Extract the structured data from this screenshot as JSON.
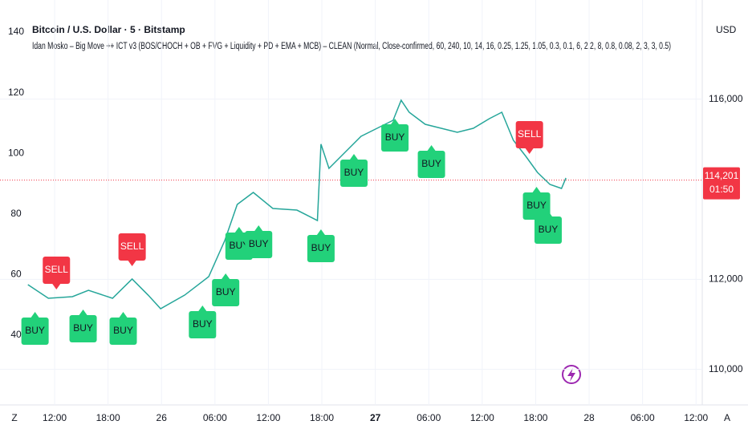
{
  "chart_data": {
    "type": "line",
    "title": "Bitcoin / U.S. Dollar · 5 · Bitstamp",
    "subtitle": "Idan Mosko – Big Move ++ ICT v3 (BOS/CHOCH + OB + FVG + Liquidity + PD + EMA + MCB) – CLEAN (Normal, Close-confirmed, 60, 240, 10, 14, 16, 0.25, 1.25, 1.05, 0.3, 0.1, 6, 2.2, 8, 0.8, 0.08, 2, 3, 3, 0.5)",
    "y_axis_label": "USD",
    "x": [
      9.0,
      11.3,
      14.0,
      15.8,
      18.5,
      20.7,
      22.5,
      23.9,
      26.6,
      29.3,
      31.1,
      32.5,
      34.3,
      36.5,
      39.2,
      41.5,
      41.9,
      42.8,
      44.6,
      46.4,
      48.2,
      50.0,
      50.9,
      51.8,
      53.6,
      55.4,
      57.2,
      59.0,
      60.8,
      62.2,
      63.5,
      64.9,
      66.2,
      67.6,
      68.9,
      69.4
    ],
    "series": [
      {
        "name": "BTCUSD",
        "color": "#26a69a",
        "values": [
          111881,
          111578,
          111614,
          111756,
          111578,
          112006,
          111649,
          111347,
          111649,
          112059,
          112860,
          113661,
          113928,
          113572,
          113536,
          113305,
          115000,
          114462,
          114818,
          115174,
          115352,
          115530,
          115975,
          115708,
          115441,
          115352,
          115263,
          115352,
          115566,
          115708,
          115085,
          114729,
          114373,
          114106,
          114017,
          114249
        ]
      }
    ],
    "xlim": [
      5.87,
      84.7
    ],
    "xticks": [
      {
        "value": 12,
        "label": "12:00"
      },
      {
        "value": 18,
        "label": "18:00"
      },
      {
        "value": 24,
        "label": "26"
      },
      {
        "value": 30,
        "label": "06:00"
      },
      {
        "value": 36,
        "label": "12:00"
      },
      {
        "value": 42,
        "label": "18:00"
      },
      {
        "value": 48,
        "label": "27"
      },
      {
        "value": 54,
        "label": "06:00"
      },
      {
        "value": 60,
        "label": "12:00"
      },
      {
        "value": 66,
        "label": "18:00"
      },
      {
        "value": 72,
        "label": "28"
      },
      {
        "value": 78,
        "label": "06:00"
      },
      {
        "value": 84,
        "label": "12:00"
      }
    ],
    "bold_xtick": 6,
    "ylim": [
      109300,
      118200
    ],
    "yticks": [
      {
        "value": 110000,
        "label": "110,000"
      },
      {
        "value": 112000,
        "label": "112,000"
      },
      {
        "value": 116000,
        "label": "116,000"
      }
    ],
    "grid": true,
    "left_axis": {
      "ylim": [
        18.3,
        150.6
      ],
      "yticks": [
        40,
        60,
        80,
        100,
        120,
        140
      ]
    },
    "current_price": {
      "value": 114201,
      "label": "114,201",
      "countdown": "01:50",
      "color": "#f23645"
    },
    "signals": [
      {
        "label": "SELL",
        "x": 12.2,
        "y": 112201
      },
      {
        "label": "SELL",
        "x": 20.7,
        "y": 112718
      },
      {
        "label": "SELL",
        "x": 65.3,
        "y": 115210
      },
      {
        "label": "BUY",
        "x": 9.8,
        "y": 110849
      },
      {
        "label": "BUY",
        "x": 15.2,
        "y": 110902
      },
      {
        "label": "BUY",
        "x": 19.7,
        "y": 110849
      },
      {
        "label": "BUY",
        "x": 28.6,
        "y": 110991
      },
      {
        "label": "BUY",
        "x": 31.2,
        "y": 111703
      },
      {
        "label": "BUY",
        "x": 32.7,
        "y": 112735
      },
      {
        "label": "BUY",
        "x": 34.9,
        "y": 112771
      },
      {
        "label": "BUY",
        "x": 41.9,
        "y": 112682
      },
      {
        "label": "BUY",
        "x": 45.6,
        "y": 114355
      },
      {
        "label": "BUY",
        "x": 50.2,
        "y": 115138
      },
      {
        "label": "BUY",
        "x": 54.3,
        "y": 114551
      },
      {
        "label": "BUY",
        "x": 66.1,
        "y": 113625
      },
      {
        "label": "BUY",
        "x": 67.4,
        "y": 113091
      }
    ],
    "signal_colors": {
      "BUY": "#22d17a",
      "SELL": "#f23645"
    },
    "corner_buttons": [
      "Z",
      "A"
    ]
  }
}
